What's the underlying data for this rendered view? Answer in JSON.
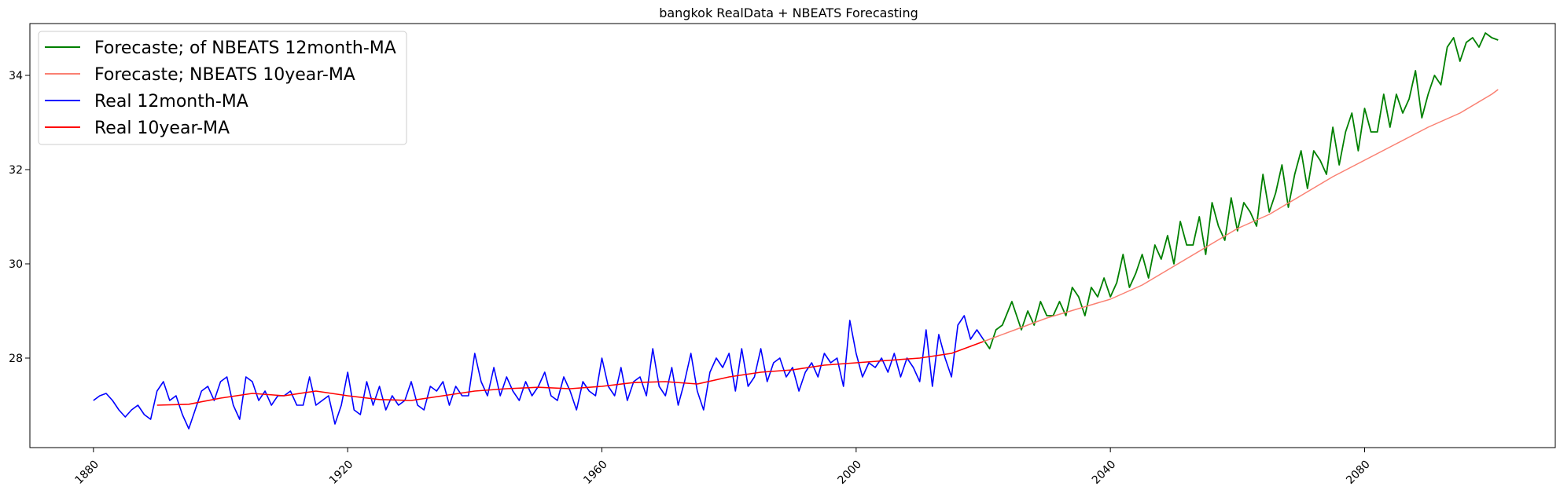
{
  "chart_data": {
    "type": "line",
    "title": "bangkok RealData + NBEATS Forecasting",
    "xlabel": "",
    "ylabel": "",
    "xlim": [
      1870,
      2110
    ],
    "ylim": [
      26.1,
      35.1
    ],
    "x_ticks": [
      1880,
      1920,
      1960,
      2000,
      2040,
      2080
    ],
    "x_tick_labels": [
      "1880",
      "1920",
      "1960",
      "2000",
      "2040",
      "2080"
    ],
    "y_ticks": [
      28,
      30,
      32,
      34
    ],
    "y_tick_labels": [
      "28",
      "30",
      "32",
      "34"
    ],
    "grid": false,
    "legend_position": "top-left",
    "series": [
      {
        "name": "Forecaste; of NBEATS 12month-MA",
        "color": "#008000",
        "x": [
          2020.0,
          2021.0,
          2022.0,
          2023.0,
          2024.5,
          2026.0,
          2027.0,
          2028.0,
          2029.0,
          2030.0,
          2031.0,
          2032.0,
          2033.0,
          2034.0,
          2035.0,
          2036.0,
          2037.0,
          2038.0,
          2039.0,
          2040.0,
          2041.0,
          2042.0,
          2043.0,
          2044.0,
          2045.0,
          2046.0,
          2047.0,
          2048.0,
          2049.0,
          2050.0,
          2051.0,
          2052.0,
          2053.0,
          2054.0,
          2055.0,
          2056.0,
          2057.0,
          2058.0,
          2059.0,
          2060.0,
          2061.0,
          2062.0,
          2063.0,
          2064.0,
          2065.0,
          2066.0,
          2067.0,
          2068.0,
          2069.0,
          2070.0,
          2071.0,
          2072.0,
          2073.0,
          2074.0,
          2075.0,
          2076.0,
          2077.0,
          2078.0,
          2079.0,
          2080.0,
          2081.0,
          2082.0,
          2083.0,
          2084.0,
          2085.0,
          2086.0,
          2087.0,
          2088.0,
          2089.0,
          2090.0,
          2091.0,
          2092.0,
          2093.0,
          2094.0,
          2095.0,
          2096.0,
          2097.0,
          2098.0,
          2099.0,
          2100.0,
          2101.0
        ],
        "values": [
          28.4,
          28.2,
          28.6,
          28.7,
          29.2,
          28.6,
          29.0,
          28.7,
          29.2,
          28.9,
          28.9,
          29.2,
          28.9,
          29.5,
          29.3,
          28.9,
          29.5,
          29.3,
          29.7,
          29.3,
          29.6,
          30.2,
          29.5,
          29.8,
          30.2,
          29.7,
          30.4,
          30.1,
          30.6,
          30.0,
          30.9,
          30.4,
          30.4,
          31.0,
          30.2,
          31.3,
          30.8,
          30.5,
          31.4,
          30.7,
          31.3,
          31.1,
          30.8,
          31.9,
          31.1,
          31.5,
          32.1,
          31.2,
          31.9,
          32.4,
          31.6,
          32.4,
          32.2,
          31.9,
          32.9,
          32.1,
          32.8,
          33.2,
          32.4,
          33.3,
          32.8,
          32.8,
          33.6,
          32.9,
          33.6,
          33.2,
          33.5,
          34.1,
          33.1,
          33.6,
          34.0,
          33.8,
          34.6,
          34.8,
          34.3,
          34.7,
          34.8,
          34.6,
          34.9,
          34.8,
          34.75
        ],
        "linewidth": 1.8
      },
      {
        "name": "Forecaste; NBEATS 10year-MA",
        "color": "#fa8072",
        "x": [
          2020,
          2025,
          2030,
          2035,
          2040,
          2045,
          2050,
          2055,
          2060,
          2065,
          2070,
          2075,
          2080,
          2085,
          2090,
          2095,
          2100,
          2101
        ],
        "values": [
          28.35,
          28.6,
          28.85,
          29.05,
          29.25,
          29.55,
          29.95,
          30.35,
          30.75,
          31.05,
          31.45,
          31.85,
          32.2,
          32.55,
          32.9,
          33.2,
          33.6,
          33.7
        ],
        "linewidth": 1.5
      },
      {
        "name": "Real 12month-MA",
        "color": "#0000ff",
        "x": [
          1880.0,
          1881.0,
          1882.0,
          1883.0,
          1884.0,
          1885.0,
          1886.0,
          1887.0,
          1888.0,
          1889.0,
          1890.0,
          1891.0,
          1892.0,
          1893.0,
          1894.0,
          1895.0,
          1896.0,
          1897.0,
          1898.0,
          1899.0,
          1900.0,
          1901.0,
          1902.0,
          1903.0,
          1904.0,
          1905.0,
          1906.0,
          1907.0,
          1908.0,
          1909.0,
          1910.0,
          1911.0,
          1912.0,
          1913.0,
          1914.0,
          1915.0,
          1916.0,
          1917.0,
          1918.0,
          1919.0,
          1920.0,
          1921.0,
          1922.0,
          1923.0,
          1924.0,
          1925.0,
          1926.0,
          1927.0,
          1928.0,
          1929.0,
          1930.0,
          1931.0,
          1932.0,
          1933.0,
          1934.0,
          1935.0,
          1936.0,
          1937.0,
          1938.0,
          1939.0,
          1940.0,
          1941.0,
          1942.0,
          1943.0,
          1944.0,
          1945.0,
          1946.0,
          1947.0,
          1948.0,
          1949.0,
          1950.0,
          1951.0,
          1952.0,
          1953.0,
          1954.0,
          1955.0,
          1956.0,
          1957.0,
          1958.0,
          1959.0,
          1960.0,
          1961.0,
          1962.0,
          1963.0,
          1964.0,
          1965.0,
          1966.0,
          1967.0,
          1968.0,
          1969.0,
          1970.0,
          1971.0,
          1972.0,
          1973.0,
          1974.0,
          1975.0,
          1976.0,
          1977.0,
          1978.0,
          1979.0,
          1980.0,
          1981.0,
          1982.0,
          1983.0,
          1984.0,
          1985.0,
          1986.0,
          1987.0,
          1988.0,
          1989.0,
          1990.0,
          1991.0,
          1992.0,
          1993.0,
          1994.0,
          1995.0,
          1996.0,
          1997.0,
          1998.0,
          1999.0,
          2000.0,
          2001.0,
          2002.0,
          2003.0,
          2004.0,
          2005.0,
          2006.0,
          2007.0,
          2008.0,
          2009.0,
          2010.0,
          2011.0,
          2012.0,
          2013.0,
          2014.0,
          2015.0,
          2016.0,
          2017.0,
          2018.0,
          2019.0,
          2020.0
        ],
        "values": [
          27.1,
          27.2,
          27.25,
          27.1,
          26.9,
          26.75,
          26.9,
          27.0,
          26.8,
          26.7,
          27.3,
          27.5,
          27.1,
          27.2,
          26.8,
          26.5,
          26.9,
          27.3,
          27.4,
          27.1,
          27.5,
          27.6,
          27.0,
          26.7,
          27.6,
          27.5,
          27.1,
          27.3,
          27.0,
          27.2,
          27.2,
          27.3,
          27.0,
          27.0,
          27.6,
          27.0,
          27.1,
          27.2,
          26.6,
          27.0,
          27.7,
          26.9,
          26.8,
          27.5,
          27.0,
          27.4,
          26.9,
          27.2,
          27.0,
          27.1,
          27.5,
          27.0,
          26.9,
          27.4,
          27.3,
          27.5,
          27.0,
          27.4,
          27.2,
          27.2,
          28.1,
          27.5,
          27.2,
          27.8,
          27.2,
          27.6,
          27.3,
          27.1,
          27.5,
          27.2,
          27.4,
          27.7,
          27.2,
          27.1,
          27.6,
          27.3,
          26.9,
          27.5,
          27.3,
          27.2,
          28.0,
          27.4,
          27.2,
          27.8,
          27.1,
          27.5,
          27.6,
          27.2,
          28.2,
          27.4,
          27.2,
          27.8,
          27.0,
          27.5,
          28.1,
          27.3,
          26.9,
          27.7,
          28.0,
          27.8,
          28.1,
          27.3,
          28.2,
          27.4,
          27.6,
          28.2,
          27.5,
          27.9,
          28.0,
          27.6,
          27.8,
          27.3,
          27.7,
          27.9,
          27.6,
          28.1,
          27.9,
          28.0,
          27.4,
          28.8,
          28.1,
          27.6,
          27.9,
          27.8,
          28.0,
          27.7,
          28.1,
          27.6,
          28.0,
          27.8,
          27.5,
          28.6,
          27.4,
          28.5,
          28.0,
          27.6,
          28.7,
          28.9,
          28.4,
          28.6,
          28.4
        ],
        "linewidth": 1.6
      },
      {
        "name": "Real 10year-MA",
        "color": "#ff0000",
        "x": [
          1890,
          1895,
          1900,
          1905,
          1910,
          1915,
          1920,
          1925,
          1930,
          1935,
          1940,
          1945,
          1950,
          1955,
          1960,
          1965,
          1970,
          1975,
          1980,
          1985,
          1990,
          1995,
          2000,
          2005,
          2010,
          2015,
          2020
        ],
        "values": [
          27.0,
          27.02,
          27.15,
          27.25,
          27.2,
          27.3,
          27.2,
          27.12,
          27.1,
          27.2,
          27.3,
          27.35,
          27.38,
          27.35,
          27.4,
          27.48,
          27.5,
          27.45,
          27.6,
          27.7,
          27.75,
          27.85,
          27.9,
          27.95,
          28.0,
          28.1,
          28.35
        ],
        "linewidth": 1.6
      }
    ]
  }
}
